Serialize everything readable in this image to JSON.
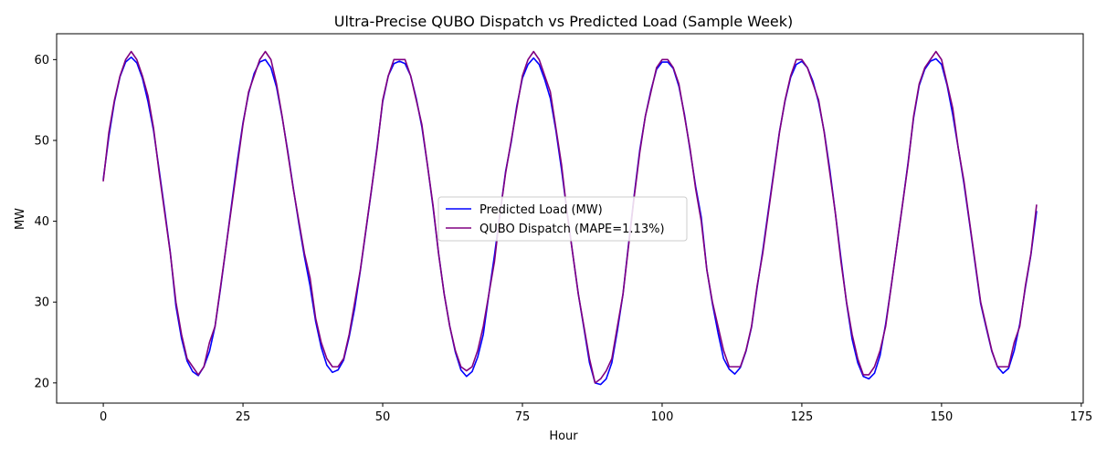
{
  "chart_data": {
    "type": "line",
    "title": "Ultra-Precise QUBO Dispatch vs Predicted Load (Sample Week)",
    "xlabel": "Hour",
    "ylabel": "MW",
    "xlim": [
      -8.35,
      175.35
    ],
    "ylim": [
      17.5,
      63.2
    ],
    "xticks": [
      0,
      25,
      50,
      75,
      100,
      125,
      150,
      175
    ],
    "yticks": [
      20,
      30,
      40,
      50,
      60
    ],
    "grid": false,
    "legend_position": "center",
    "series": [
      {
        "name": "Predicted Load (MW)",
        "color": "#0000ff",
        "x": [
          0,
          1,
          2,
          3,
          4,
          5,
          6,
          7,
          8,
          9,
          10,
          11,
          12,
          13,
          14,
          15,
          16,
          17,
          18,
          19,
          20,
          21,
          22,
          23,
          24,
          25,
          26,
          27,
          28,
          29,
          30,
          31,
          32,
          33,
          34,
          35,
          36,
          37,
          38,
          39,
          40,
          41,
          42,
          43,
          44,
          45,
          46,
          47,
          48,
          49,
          50,
          51,
          52,
          53,
          54,
          55,
          56,
          57,
          58,
          59,
          60,
          61,
          62,
          63,
          64,
          65,
          66,
          67,
          68,
          69,
          70,
          71,
          72,
          73,
          74,
          75,
          76,
          77,
          78,
          79,
          80,
          81,
          82,
          83,
          84,
          85,
          86,
          87,
          88,
          89,
          90,
          91,
          92,
          93,
          94,
          95,
          96,
          97,
          98,
          99,
          100,
          101,
          102,
          103,
          104,
          105,
          106,
          107,
          108,
          109,
          110,
          111,
          112,
          113,
          114,
          115,
          116,
          117,
          118,
          119,
          120,
          121,
          122,
          123,
          124,
          125,
          126,
          127,
          128,
          129,
          130,
          131,
          132,
          133,
          134,
          135,
          136,
          137,
          138,
          139,
          140,
          141,
          142,
          143,
          144,
          145,
          146,
          147,
          148,
          149,
          150,
          151,
          152,
          153,
          154,
          155,
          156,
          157,
          158,
          159,
          160,
          161,
          162,
          163,
          164,
          165,
          166,
          167
        ],
        "values": [
          45.2,
          50.5,
          54.8,
          57.9,
          59.7,
          60.3,
          59.6,
          57.7,
          54.8,
          51.2,
          46.3,
          41.3,
          36.1,
          29.5,
          25.5,
          22.7,
          21.4,
          20.9,
          22.0,
          23.9,
          27.0,
          31.8,
          37.0,
          42.3,
          47.5,
          52.2,
          55.8,
          58.3,
          59.7,
          60.0,
          59.0,
          56.6,
          52.9,
          48.7,
          44.1,
          39.7,
          35.6,
          32.0,
          27.6,
          24.4,
          22.2,
          21.3,
          21.6,
          22.8,
          25.7,
          29.3,
          33.9,
          38.9,
          43.9,
          49.2,
          54.8,
          58.0,
          59.5,
          59.8,
          59.5,
          58.0,
          55.2,
          51.7,
          47.0,
          41.8,
          36.0,
          31.0,
          27.0,
          23.8,
          21.6,
          20.8,
          21.4,
          23.2,
          26.0,
          31.0,
          35.8,
          41.0,
          46.2,
          49.8,
          54.3,
          57.7,
          59.4,
          60.2,
          59.4,
          57.5,
          55.2,
          51.2,
          46.4,
          41.1,
          36.0,
          31.0,
          26.8,
          22.5,
          20.0,
          19.8,
          20.5,
          22.5,
          26.5,
          31.0,
          37.2,
          43.2,
          48.8,
          53.0,
          56.2,
          58.8,
          59.7,
          59.7,
          58.9,
          56.7,
          53.2,
          48.8,
          44.3,
          40.5,
          34.0,
          29.8,
          26.2,
          23.0,
          21.7,
          21.1,
          21.9,
          23.9,
          26.9,
          31.8,
          36.3,
          41.3,
          46.2,
          51.1,
          54.9,
          57.8,
          59.4,
          59.8,
          59.0,
          57.3,
          54.7,
          51.1,
          46.4,
          41.0,
          35.4,
          29.9,
          25.4,
          22.5,
          20.8,
          20.5,
          21.2,
          23.4,
          27.3,
          32.0,
          37.0,
          42.0,
          47.2,
          52.8,
          56.8,
          58.8,
          59.8,
          60.1,
          59.4,
          56.8,
          53.2,
          49.0,
          44.7,
          39.8,
          34.8,
          29.8,
          26.8,
          23.9,
          22.0,
          21.2,
          21.8,
          24.0,
          27.3,
          31.8,
          35.9,
          41.2
        ]
      },
      {
        "name": "QUBO Dispatch (MAPE=1.13%)",
        "color": "#800080",
        "x": [
          0,
          1,
          2,
          3,
          4,
          5,
          6,
          7,
          8,
          9,
          10,
          11,
          12,
          13,
          14,
          15,
          16,
          17,
          18,
          19,
          20,
          21,
          22,
          23,
          24,
          25,
          26,
          27,
          28,
          29,
          30,
          31,
          32,
          33,
          34,
          35,
          36,
          37,
          38,
          39,
          40,
          41,
          42,
          43,
          44,
          45,
          46,
          47,
          48,
          49,
          50,
          51,
          52,
          53,
          54,
          55,
          56,
          57,
          58,
          59,
          60,
          61,
          62,
          63,
          64,
          65,
          66,
          67,
          68,
          69,
          70,
          71,
          72,
          73,
          74,
          75,
          76,
          77,
          78,
          79,
          80,
          81,
          82,
          83,
          84,
          85,
          86,
          87,
          88,
          89,
          90,
          91,
          92,
          93,
          94,
          95,
          96,
          97,
          98,
          99,
          100,
          101,
          102,
          103,
          104,
          105,
          106,
          107,
          108,
          109,
          110,
          111,
          112,
          113,
          114,
          115,
          116,
          117,
          118,
          119,
          120,
          121,
          122,
          123,
          124,
          125,
          126,
          127,
          128,
          129,
          130,
          131,
          132,
          133,
          134,
          135,
          136,
          137,
          138,
          139,
          140,
          141,
          142,
          143,
          144,
          145,
          146,
          147,
          148,
          149,
          150,
          151,
          152,
          153,
          154,
          155,
          156,
          157,
          158,
          159,
          160,
          161,
          162,
          163,
          164,
          165,
          166,
          167
        ],
        "values": [
          45.0,
          51.0,
          55.0,
          58.0,
          60.0,
          61.0,
          60.0,
          58.0,
          55.5,
          51.5,
          46.0,
          41.0,
          36.0,
          30.0,
          26.0,
          23.0,
          22.0,
          21.0,
          22.0,
          25.0,
          27.0,
          32.0,
          37.0,
          42.0,
          47.0,
          52.0,
          56.0,
          58.0,
          60.0,
          61.0,
          60.0,
          57.0,
          53.0,
          48.5,
          44.0,
          40.0,
          36.0,
          33.0,
          28.0,
          25.0,
          23.0,
          22.0,
          22.0,
          23.0,
          26.0,
          30.0,
          34.0,
          39.0,
          44.0,
          49.0,
          55.0,
          58.0,
          60.0,
          60.0,
          60.0,
          58.0,
          55.0,
          52.0,
          47.0,
          42.0,
          36.0,
          31.0,
          27.0,
          24.0,
          22.0,
          21.5,
          22.0,
          24.0,
          27.0,
          31.0,
          35.0,
          41.0,
          46.0,
          50.0,
          54.0,
          58.0,
          60.0,
          61.0,
          60.0,
          58.0,
          56.0,
          51.5,
          47.0,
          41.0,
          36.0,
          31.0,
          27.0,
          23.0,
          20.0,
          20.5,
          21.5,
          23.0,
          27.0,
          31.0,
          37.0,
          43.0,
          48.5,
          53.0,
          56.0,
          59.0,
          60.0,
          60.0,
          59.0,
          57.0,
          53.0,
          49.0,
          44.0,
          40.0,
          34.0,
          30.0,
          27.0,
          24.0,
          22.0,
          22.0,
          22.0,
          24.0,
          27.0,
          32.0,
          36.0,
          41.0,
          46.0,
          51.0,
          55.0,
          58.0,
          60.0,
          60.0,
          59.0,
          57.0,
          55.0,
          51.0,
          46.0,
          41.0,
          35.0,
          30.0,
          26.0,
          23.0,
          21.0,
          21.0,
          22.0,
          24.0,
          27.0,
          32.0,
          37.0,
          42.0,
          47.0,
          53.0,
          57.0,
          59.0,
          60.0,
          61.0,
          60.0,
          57.0,
          54.0,
          49.0,
          45.0,
          40.0,
          35.0,
          30.0,
          27.0,
          24.0,
          22.0,
          22.0,
          22.0,
          25.0,
          27.0,
          32.0,
          36.0,
          42.0
        ]
      }
    ]
  }
}
